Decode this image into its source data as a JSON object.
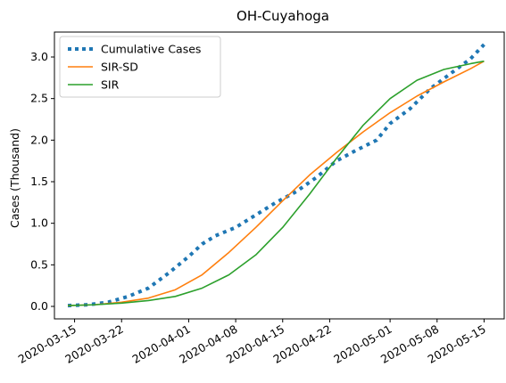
{
  "chart_data": {
    "type": "line",
    "title": "OH-Cuyahoga",
    "xlabel": "",
    "ylabel": "Cases (Thousand)",
    "xlim": [
      "2020-03-12",
      "2020-05-18"
    ],
    "ylim": [
      -0.15,
      3.3
    ],
    "grid": false,
    "legend_position": "top-left",
    "x_ticks": [
      "2020-03-15",
      "2020-03-22",
      "2020-04-01",
      "2020-04-08",
      "2020-04-15",
      "2020-04-22",
      "2020-05-01",
      "2020-05-08",
      "2020-05-15"
    ],
    "y_ticks": [
      "0.0",
      "0.5",
      "1.0",
      "1.5",
      "2.0",
      "2.5",
      "3.0"
    ],
    "series": [
      {
        "name": "Cumulative Cases",
        "color": "#1f77b4",
        "style": "dotted",
        "x": [
          "2020-03-14",
          "2020-03-17",
          "2020-03-20",
          "2020-03-23",
          "2020-03-26",
          "2020-03-29",
          "2020-04-01",
          "2020-04-03",
          "2020-04-05",
          "2020-04-08",
          "2020-04-11",
          "2020-04-14",
          "2020-04-17",
          "2020-04-20",
          "2020-04-23",
          "2020-04-26",
          "2020-04-29",
          "2020-05-01",
          "2020-05-04",
          "2020-05-07",
          "2020-05-10",
          "2020-05-13",
          "2020-05-15"
        ],
        "values": [
          0.01,
          0.02,
          0.05,
          0.12,
          0.22,
          0.4,
          0.6,
          0.75,
          0.85,
          0.95,
          1.1,
          1.25,
          1.38,
          1.55,
          1.75,
          1.88,
          2.0,
          2.2,
          2.38,
          2.62,
          2.8,
          2.98,
          3.15
        ]
      },
      {
        "name": "SIR-SD",
        "color": "#ff7f0e",
        "style": "solid",
        "x": [
          "2020-03-14",
          "2020-03-18",
          "2020-03-22",
          "2020-03-26",
          "2020-03-30",
          "2020-04-03",
          "2020-04-07",
          "2020-04-11",
          "2020-04-15",
          "2020-04-19",
          "2020-04-23",
          "2020-04-27",
          "2020-05-01",
          "2020-05-05",
          "2020-05-09",
          "2020-05-13",
          "2020-05-15"
        ],
        "values": [
          0.01,
          0.02,
          0.05,
          0.1,
          0.2,
          0.38,
          0.65,
          0.95,
          1.27,
          1.58,
          1.85,
          2.1,
          2.33,
          2.53,
          2.7,
          2.86,
          2.95
        ]
      },
      {
        "name": "SIR",
        "color": "#2ca02c",
        "style": "solid",
        "x": [
          "2020-03-14",
          "2020-03-18",
          "2020-03-22",
          "2020-03-26",
          "2020-03-30",
          "2020-04-03",
          "2020-04-07",
          "2020-04-11",
          "2020-04-15",
          "2020-04-19",
          "2020-04-23",
          "2020-04-27",
          "2020-05-01",
          "2020-05-05",
          "2020-05-09",
          "2020-05-13",
          "2020-05-15"
        ],
        "values": [
          0.01,
          0.02,
          0.04,
          0.07,
          0.12,
          0.22,
          0.38,
          0.62,
          0.95,
          1.35,
          1.78,
          2.18,
          2.5,
          2.72,
          2.85,
          2.92,
          2.95
        ]
      }
    ]
  }
}
